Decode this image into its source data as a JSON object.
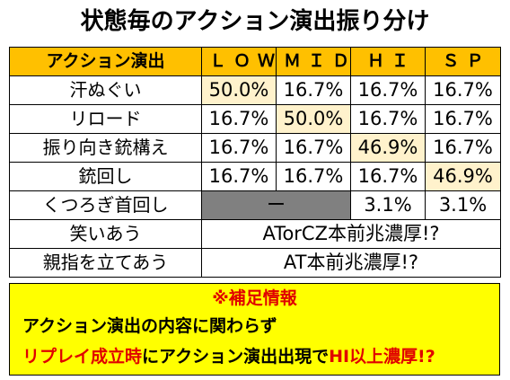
{
  "title": "状態毎のアクション演出振り分け",
  "table": {
    "headers": [
      "アクション演出",
      "ＬＯＷ",
      "ＭＩＤ",
      "ＨＩ",
      "ＳＰ"
    ],
    "rows": [
      {
        "label": "汗ぬぐい",
        "low": "50.0%",
        "mid": "16.7%",
        "hi": "16.7%",
        "sp": "16.7%"
      },
      {
        "label": "リロード",
        "low": "16.7%",
        "mid": "50.0%",
        "hi": "16.7%",
        "sp": "16.7%"
      },
      {
        "label": "振り向き銃構え",
        "low": "16.7%",
        "mid": "16.7%",
        "hi": "46.9%",
        "sp": "16.7%"
      },
      {
        "label": "銃回し",
        "low": "16.7%",
        "mid": "16.7%",
        "hi": "16.7%",
        "sp": "46.9%"
      },
      {
        "label": "くつろぎ首回し",
        "lowmid": "ー",
        "hi": "3.1%",
        "sp": "3.1%"
      },
      {
        "label": "笑いあう",
        "merged": "ATorCZ本前兆濃厚!?"
      },
      {
        "label": "親指を立てあう",
        "merged": "AT本前兆濃厚!?"
      }
    ]
  },
  "note": {
    "title": "※補足情報",
    "line1": "アクション演出の内容に関わらず",
    "line2_red_a": "リプレイ成立時",
    "line2_black": "にアクション演出出現で",
    "line2_red_b": "HI以上濃厚!?"
  }
}
